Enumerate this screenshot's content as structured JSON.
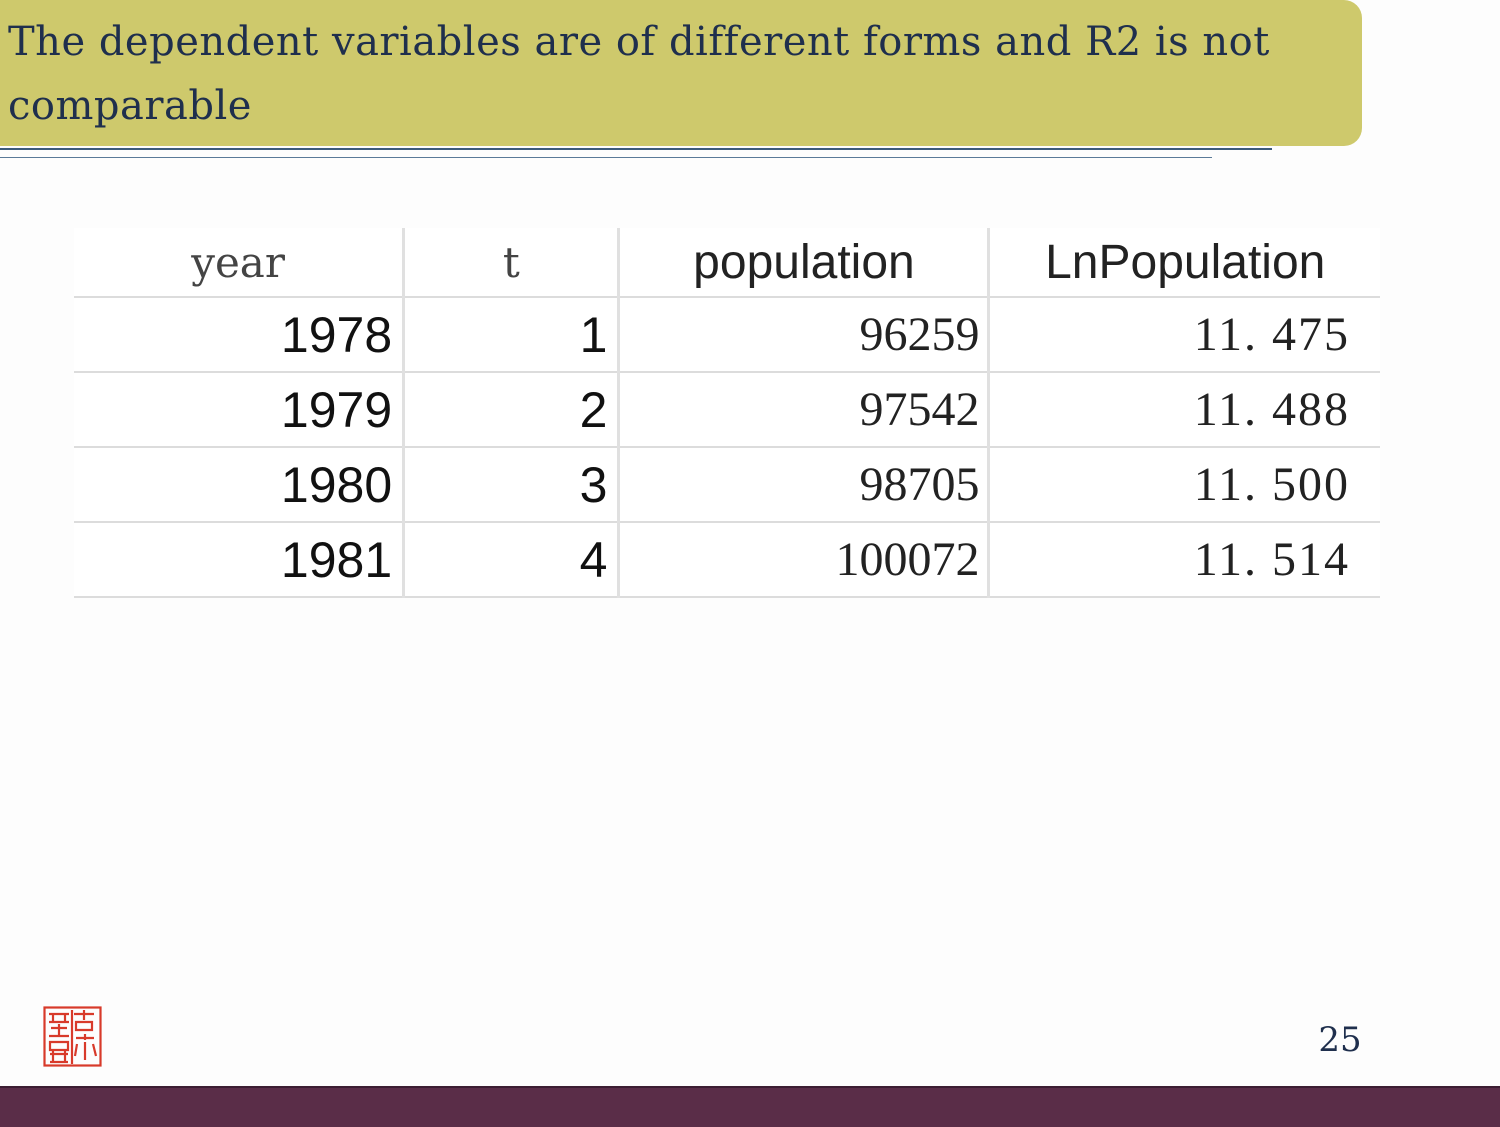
{
  "slide": {
    "title": "The dependent variables are of different forms and R2 is not comparable",
    "page_number": "25"
  },
  "table": {
    "headers": [
      "year",
      "t",
      "population",
      "LnPopulation"
    ],
    "rows": [
      [
        "1978",
        "1",
        "96259",
        "11. 475"
      ],
      [
        "1979",
        "2",
        "97542",
        "11. 488"
      ],
      [
        "1980",
        "3",
        "98705",
        "11. 500"
      ],
      [
        "1981",
        "4",
        "100072",
        "11. 514"
      ]
    ]
  },
  "colors": {
    "title_bar": "#cec96c",
    "title_text": "#1f2f4d",
    "footer_bar": "#5a2d48",
    "seal": "#d83a2a"
  },
  "icons": {
    "seal": "red-seal-stamp-icon"
  }
}
